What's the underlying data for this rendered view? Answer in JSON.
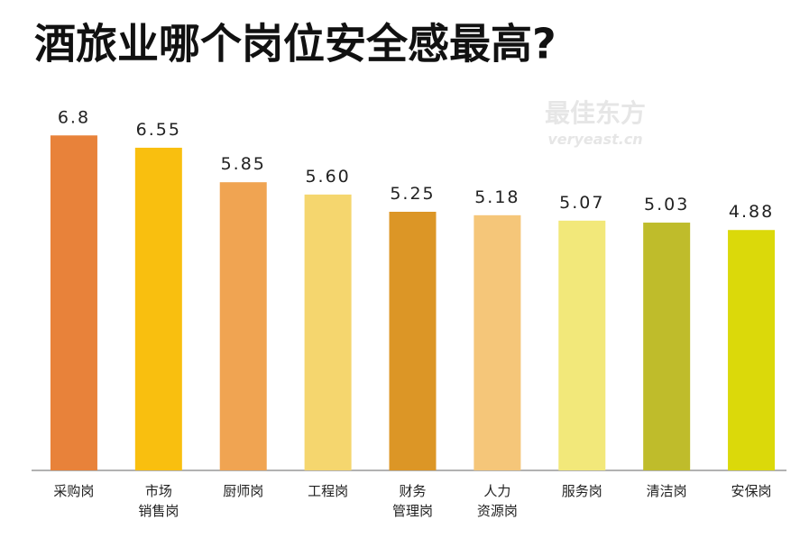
{
  "chart_data": {
    "type": "bar",
    "title": "酒旅业哪个岗位安全感最高?",
    "watermark": {
      "brand": "最佳东方",
      "site": "veryeast.cn"
    },
    "categories": [
      "采购岗",
      "市场\n销售岗",
      "厨师岗",
      "工程岗",
      "财务\n管理岗",
      "人力\n资源岗",
      "服务岗",
      "清洁岗",
      "安保岗"
    ],
    "values": [
      6.8,
      6.55,
      5.85,
      5.6,
      5.25,
      5.18,
      5.07,
      5.03,
      4.88
    ],
    "value_labels": [
      "6.8",
      "6.55",
      "5.85",
      "5.60",
      "5.25",
      "5.18",
      "5.07",
      "5.03",
      "4.88"
    ],
    "colors": [
      "#e8823a",
      "#f9bf0f",
      "#f0a452",
      "#f5d66e",
      "#dc9626",
      "#f5c679",
      "#f2e87a",
      "#bfbc2b",
      "#dbd90a"
    ],
    "ylim": [
      0,
      7.5
    ]
  }
}
